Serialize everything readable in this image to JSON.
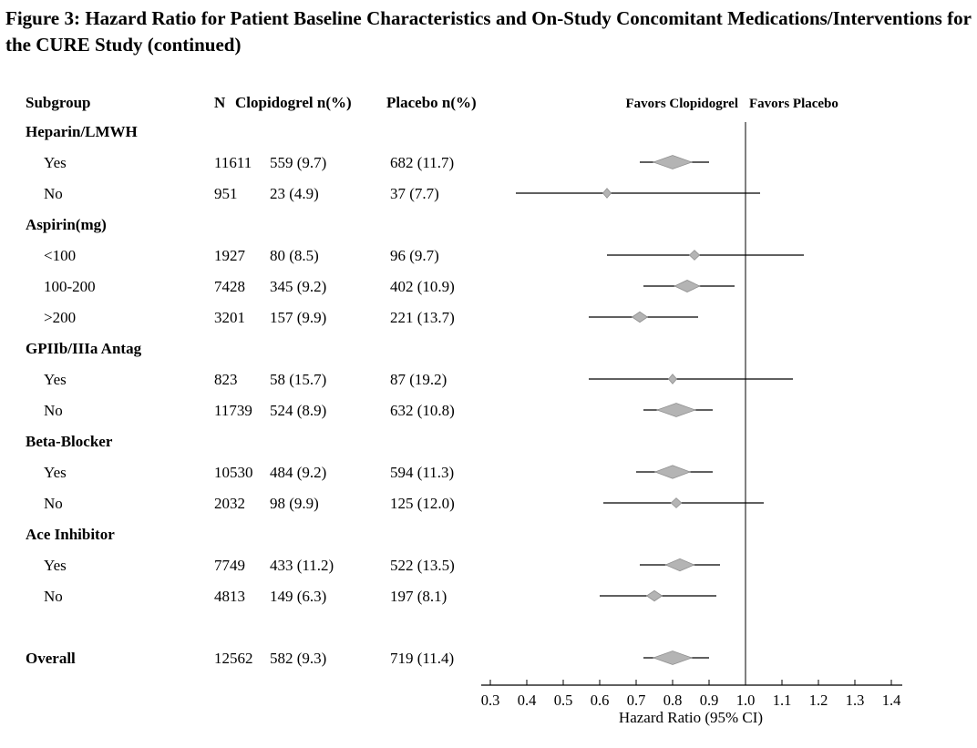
{
  "title": "Figure 3: Hazard Ratio for Patient Baseline Characteristics and On-Study Concomitant Medications/Interventions for the CURE Study (continued)",
  "columns": {
    "subgroup": "Subgroup",
    "n": "N",
    "clopidogrel": "Clopidogrel n(%)",
    "placebo": "Placebo  n(%)"
  },
  "colors": {
    "line": "#000000",
    "diamond_fill": "#b4b4b4",
    "diamond_stroke": "#8f8f8f"
  },
  "chart_data": {
    "type": "forest",
    "title": "Figure 3: Hazard Ratio for Patient Baseline Characteristics and On-Study Concomitant Medications/Interventions for the CURE Study (continued)",
    "xlabel": "Hazard Ratio (95% CI)",
    "xlim": [
      0.3,
      1.4
    ],
    "x_ticks": [
      0.3,
      0.4,
      0.5,
      0.6,
      0.7,
      0.8,
      0.9,
      1.0,
      1.1,
      1.2,
      1.3,
      1.4
    ],
    "reference_line": 1.0,
    "favors_left": "Favors Clopidogrel",
    "favors_right": "Favors Placebo",
    "rows": [
      {
        "type": "group",
        "label": "Heparin/LMWH"
      },
      {
        "type": "item",
        "label": "Yes",
        "n": "11611",
        "clopidogrel": "559 (9.7)",
        "placebo": "682 (11.7)",
        "hr": 0.8,
        "ci_low": 0.71,
        "ci_high": 0.9,
        "weight": 1.0
      },
      {
        "type": "item",
        "label": "No",
        "n": "951",
        "clopidogrel": "23 (4.9)",
        "placebo": "37 (7.7)",
        "hr": 0.62,
        "ci_low": 0.37,
        "ci_high": 1.04,
        "weight": 0.08
      },
      {
        "type": "group",
        "label": "Aspirin(mg)"
      },
      {
        "type": "item",
        "label": "<100",
        "n": "1927",
        "clopidogrel": "80 (8.5)",
        "placebo": "96 (9.7)",
        "hr": 0.86,
        "ci_low": 0.62,
        "ci_high": 1.16,
        "weight": 0.14
      },
      {
        "type": "item",
        "label": "100-200",
        "n": "7428",
        "clopidogrel": "345 (9.2)",
        "placebo": "402 (10.9)",
        "hr": 0.84,
        "ci_low": 0.72,
        "ci_high": 0.97,
        "weight": 0.6
      },
      {
        "type": "item",
        "label": ">200",
        "n": "3201",
        "clopidogrel": "157 (9.9)",
        "placebo": "221 (13.7)",
        "hr": 0.71,
        "ci_low": 0.57,
        "ci_high": 0.87,
        "weight": 0.3
      },
      {
        "type": "group",
        "label": "GPIIb/IIIa Antag"
      },
      {
        "type": "item",
        "label": "Yes",
        "n": "823",
        "clopidogrel": "58 (15.7)",
        "placebo": "87 (19.2)",
        "hr": 0.8,
        "ci_low": 0.57,
        "ci_high": 1.13,
        "weight": 0.08
      },
      {
        "type": "item",
        "label": "No",
        "n": "11739",
        "clopidogrel": "524 (8.9)",
        "placebo": "632 (10.8)",
        "hr": 0.81,
        "ci_low": 0.72,
        "ci_high": 0.91,
        "weight": 1.0
      },
      {
        "type": "group",
        "label": "Beta-Blocker"
      },
      {
        "type": "item",
        "label": "Yes",
        "n": "10530",
        "clopidogrel": "484 (9.2)",
        "placebo": "594 (11.3)",
        "hr": 0.8,
        "ci_low": 0.7,
        "ci_high": 0.91,
        "weight": 0.9
      },
      {
        "type": "item",
        "label": "No",
        "n": "2032",
        "clopidogrel": "98 (9.9)",
        "placebo": "125 (12.0)",
        "hr": 0.81,
        "ci_low": 0.61,
        "ci_high": 1.05,
        "weight": 0.15
      },
      {
        "type": "group",
        "label": "Ace Inhibitor"
      },
      {
        "type": "item",
        "label": "Yes",
        "n": "7749",
        "clopidogrel": "433 (11.2)",
        "placebo": "522 (13.5)",
        "hr": 0.82,
        "ci_low": 0.71,
        "ci_high": 0.93,
        "weight": 0.7
      },
      {
        "type": "item",
        "label": "No",
        "n": "4813",
        "clopidogrel": "149 (6.3)",
        "placebo": "197 (8.1)",
        "hr": 0.75,
        "ci_low": 0.6,
        "ci_high": 0.92,
        "weight": 0.3
      },
      {
        "type": "spacer"
      },
      {
        "type": "overall",
        "label": "Overall",
        "n": "12562",
        "clopidogrel": "582 (9.3)",
        "placebo": "719 (11.4)",
        "hr": 0.8,
        "ci_low": 0.72,
        "ci_high": 0.9,
        "weight": 1.0
      }
    ]
  }
}
